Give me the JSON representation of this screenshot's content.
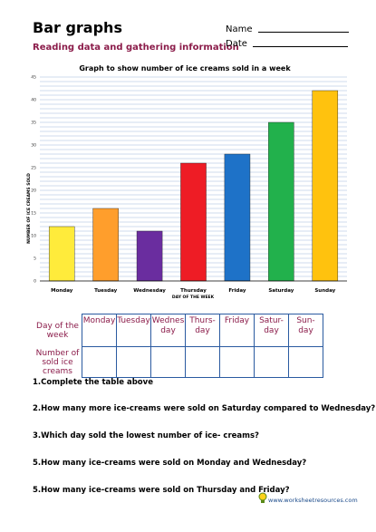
{
  "header": {
    "title": "Bar graphs",
    "subtitle": "Reading data and gathering information",
    "name_label": "Name",
    "date_label": "Date"
  },
  "chart_data": {
    "type": "bar",
    "title": "Graph to show number of ice creams sold in a week",
    "xlabel": "DAY OF THE WEEK",
    "ylabel": "NUMBER OF ICE CREAMS SOLD",
    "categories": [
      "Monday",
      "Tuesday",
      "Wednesday",
      "Thursday",
      "Friday",
      "Saturday",
      "Sunday"
    ],
    "values": [
      12,
      16,
      11,
      26,
      28,
      35,
      42
    ],
    "colors": [
      "#ffeb3b",
      "#ff9e2c",
      "#6a2d9f",
      "#ee1c25",
      "#1e72c8",
      "#22b14c",
      "#ffc20e"
    ],
    "ylim": [
      0,
      45
    ],
    "yticks": [
      0,
      5,
      10,
      15,
      20,
      25,
      30,
      35,
      40,
      45
    ],
    "grid": true
  },
  "table": {
    "row1_label": "Day of the week",
    "row2_label": "Number of sold ice creams",
    "days": [
      "Monday",
      "Tuesday",
      "Wednes day",
      "Thurs- day",
      "Friday",
      "Satur- day",
      "Sun- day"
    ]
  },
  "questions": [
    "1.Complete the table above",
    "2.How many more ice-creams were sold on Saturday compared to Wednesday?",
    "3.Which day sold the lowest number of ice- creams?",
    "5.How many ice-creams were sold on Monday and Wednesday?",
    "5.How many ice-creams were sold on Thursday and Friday?"
  ],
  "footer": {
    "brand": "www.worksheetresources.com",
    "icon": "lightbulb-icon"
  }
}
